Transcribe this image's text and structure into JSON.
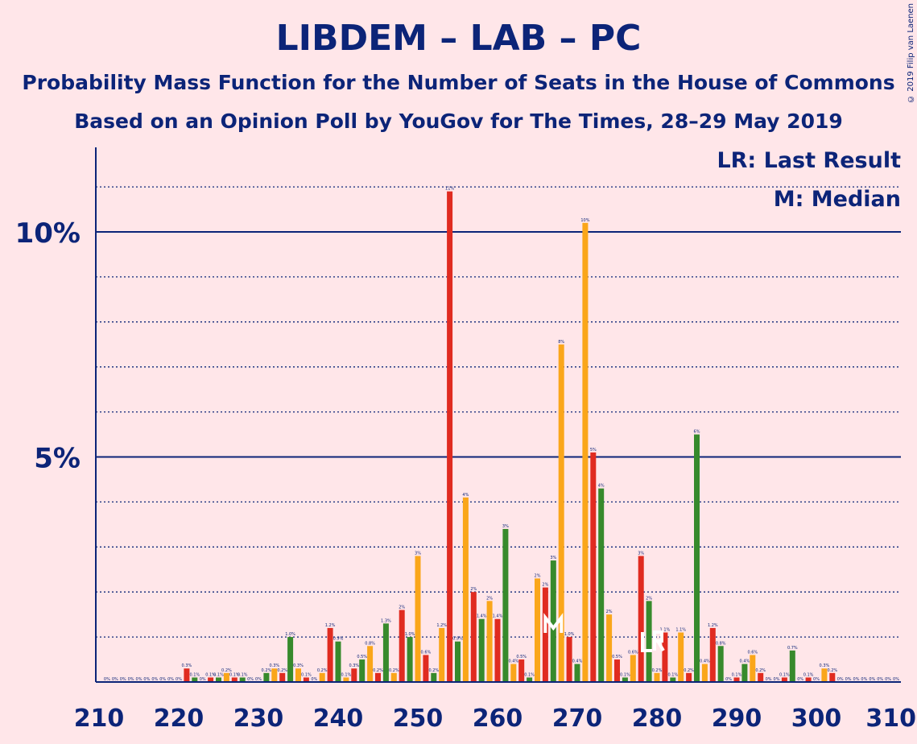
{
  "title": "LIBDEM – LAB – PC",
  "subtitle": "Probability Mass Function for the Number of Seats in the House of Commons",
  "subtitle2": "Based on an Opinion Poll by YouGov for The Times, 28–29 May 2019",
  "copyright": "© 2019 Filip van Laenen",
  "legend": {
    "lr": "LR: Last Result",
    "median": "M: Median"
  },
  "colors": {
    "red": "#E02B20",
    "green": "#378A2C",
    "orange": "#FAA61A",
    "axis": "#0C2478",
    "background": "#FFE6E9",
    "marker": "#FFFFFF"
  },
  "chart_data": {
    "type": "bar",
    "x_range": [
      210,
      310
    ],
    "ylim": [
      0,
      12
    ],
    "y_ticks": [
      {
        "value": 5,
        "label": "5%"
      },
      {
        "value": 10,
        "label": "10%"
      }
    ],
    "x_ticks": [
      210,
      220,
      230,
      240,
      250,
      260,
      270,
      280,
      290,
      300,
      310
    ],
    "median_seat": 267,
    "last_result_seat": 280,
    "bars": [
      {
        "seat": 211,
        "value": 0.0,
        "label": "0%",
        "color": "red"
      },
      {
        "seat": 212,
        "value": 0.0,
        "label": "0%",
        "color": "green"
      },
      {
        "seat": 213,
        "value": 0.0,
        "label": "0%",
        "color": "orange"
      },
      {
        "seat": 214,
        "value": 0.0,
        "label": "0%",
        "color": "red"
      },
      {
        "seat": 215,
        "value": 0.0,
        "label": "0%",
        "color": "green"
      },
      {
        "seat": 216,
        "value": 0.0,
        "label": "0%",
        "color": "orange"
      },
      {
        "seat": 217,
        "value": 0.0,
        "label": "0%",
        "color": "red"
      },
      {
        "seat": 218,
        "value": 0.0,
        "label": "0%",
        "color": "green"
      },
      {
        "seat": 219,
        "value": 0.0,
        "label": "0%",
        "color": "orange"
      },
      {
        "seat": 220,
        "value": 0.0,
        "label": "0%",
        "color": "red"
      },
      {
        "seat": 221,
        "value": 0.3,
        "label": "0.3%",
        "color": "red"
      },
      {
        "seat": 222,
        "value": 0.1,
        "label": "0.1%",
        "color": "green"
      },
      {
        "seat": 223,
        "value": 0.0,
        "label": "0%",
        "color": "orange"
      },
      {
        "seat": 224,
        "value": 0.1,
        "label": "0.1%",
        "color": "red"
      },
      {
        "seat": 225,
        "value": 0.1,
        "label": "0.1%",
        "color": "green"
      },
      {
        "seat": 226,
        "value": 0.2,
        "label": "0.2%",
        "color": "orange"
      },
      {
        "seat": 227,
        "value": 0.1,
        "label": "0.1%",
        "color": "red"
      },
      {
        "seat": 228,
        "value": 0.1,
        "label": "0.1%",
        "color": "green"
      },
      {
        "seat": 229,
        "value": 0.0,
        "label": "0%",
        "color": "orange"
      },
      {
        "seat": 230,
        "value": 0.0,
        "label": "0%",
        "color": "red"
      },
      {
        "seat": 231,
        "value": 0.2,
        "label": "0.2%",
        "color": "green"
      },
      {
        "seat": 232,
        "value": 0.3,
        "label": "0.3%",
        "color": "orange"
      },
      {
        "seat": 233,
        "value": 0.2,
        "label": "0.2%",
        "color": "red"
      },
      {
        "seat": 234,
        "value": 1.0,
        "label": "1.0%",
        "color": "green"
      },
      {
        "seat": 235,
        "value": 0.3,
        "label": "0.3%",
        "color": "orange"
      },
      {
        "seat": 236,
        "value": 0.1,
        "label": "0.1%",
        "color": "red"
      },
      {
        "seat": 237,
        "value": 0.0,
        "label": "0%",
        "color": "green"
      },
      {
        "seat": 238,
        "value": 0.2,
        "label": "0.2%",
        "color": "orange"
      },
      {
        "seat": 239,
        "value": 1.2,
        "label": "1.2%",
        "color": "red"
      },
      {
        "seat": 240,
        "value": 0.9,
        "label": "0.9%",
        "color": "green"
      },
      {
        "seat": 241,
        "value": 0.1,
        "label": "0.1%",
        "color": "orange"
      },
      {
        "seat": 242,
        "value": 0.3,
        "label": "0.3%",
        "color": "red"
      },
      {
        "seat": 243,
        "value": 0.5,
        "label": "0.5%",
        "color": "green"
      },
      {
        "seat": 244,
        "value": 0.8,
        "label": "0.8%",
        "color": "orange"
      },
      {
        "seat": 245,
        "value": 0.2,
        "label": "0.2%",
        "color": "red"
      },
      {
        "seat": 246,
        "value": 1.3,
        "label": "1.3%",
        "color": "green"
      },
      {
        "seat": 247,
        "value": 0.2,
        "label": "0.2%",
        "color": "orange"
      },
      {
        "seat": 248,
        "value": 1.6,
        "label": "2%",
        "color": "red"
      },
      {
        "seat": 249,
        "value": 1.0,
        "label": "1.0%",
        "color": "green"
      },
      {
        "seat": 250,
        "value": 2.8,
        "label": "3%",
        "color": "orange"
      },
      {
        "seat": 251,
        "value": 0.6,
        "label": "0.6%",
        "color": "red"
      },
      {
        "seat": 252,
        "value": 0.2,
        "label": "0.2%",
        "color": "green"
      },
      {
        "seat": 253,
        "value": 1.2,
        "label": "1.2%",
        "color": "orange"
      },
      {
        "seat": 254,
        "value": 10.9,
        "label": "11%",
        "color": "red"
      },
      {
        "seat": 255,
        "value": 0.9,
        "label": "0.9%",
        "color": "green"
      },
      {
        "seat": 256,
        "value": 4.1,
        "label": "4%",
        "color": "orange"
      },
      {
        "seat": 257,
        "value": 2.0,
        "label": "2%",
        "color": "red"
      },
      {
        "seat": 258,
        "value": 1.4,
        "label": "1.4%",
        "color": "green"
      },
      {
        "seat": 259,
        "value": 1.8,
        "label": "2%",
        "color": "orange"
      },
      {
        "seat": 260,
        "value": 1.4,
        "label": "1.4%",
        "color": "red"
      },
      {
        "seat": 261,
        "value": 3.4,
        "label": "3%",
        "color": "green"
      },
      {
        "seat": 262,
        "value": 0.4,
        "label": "0.4%",
        "color": "orange"
      },
      {
        "seat": 263,
        "value": 0.5,
        "label": "0.5%",
        "color": "red"
      },
      {
        "seat": 264,
        "value": 0.1,
        "label": "0.1%",
        "color": "green"
      },
      {
        "seat": 265,
        "value": 2.3,
        "label": "2%",
        "color": "orange"
      },
      {
        "seat": 266,
        "value": 2.1,
        "label": "2%",
        "color": "red"
      },
      {
        "seat": 267,
        "value": 2.7,
        "label": "3%",
        "color": "green"
      },
      {
        "seat": 268,
        "value": 7.5,
        "label": "8%",
        "color": "orange"
      },
      {
        "seat": 269,
        "value": 1.0,
        "label": "1.0%",
        "color": "red"
      },
      {
        "seat": 270,
        "value": 0.4,
        "label": "0.4%",
        "color": "green"
      },
      {
        "seat": 271,
        "value": 10.2,
        "label": "10%",
        "color": "orange"
      },
      {
        "seat": 272,
        "value": 5.1,
        "label": "5%",
        "color": "red"
      },
      {
        "seat": 273,
        "value": 4.3,
        "label": "4%",
        "color": "green"
      },
      {
        "seat": 274,
        "value": 1.5,
        "label": "2%",
        "color": "orange"
      },
      {
        "seat": 275,
        "value": 0.5,
        "label": "0.5%",
        "color": "red"
      },
      {
        "seat": 276,
        "value": 0.1,
        "label": "0.1%",
        "color": "green"
      },
      {
        "seat": 277,
        "value": 0.6,
        "label": "0.6%",
        "color": "orange"
      },
      {
        "seat": 278,
        "value": 2.8,
        "label": "3%",
        "color": "red"
      },
      {
        "seat": 279,
        "value": 1.8,
        "label": "2%",
        "color": "green"
      },
      {
        "seat": 280,
        "value": 0.2,
        "label": "0.2%",
        "color": "orange"
      },
      {
        "seat": 281,
        "value": 1.1,
        "label": "1.1%",
        "color": "red"
      },
      {
        "seat": 282,
        "value": 0.1,
        "label": "0.1%",
        "color": "green"
      },
      {
        "seat": 283,
        "value": 1.1,
        "label": "1.1%",
        "color": "orange"
      },
      {
        "seat": 284,
        "value": 0.2,
        "label": "0.2%",
        "color": "red"
      },
      {
        "seat": 285,
        "value": 5.5,
        "label": "6%",
        "color": "green"
      },
      {
        "seat": 286,
        "value": 0.4,
        "label": "0.4%",
        "color": "orange"
      },
      {
        "seat": 287,
        "value": 1.2,
        "label": "1.2%",
        "color": "red"
      },
      {
        "seat": 288,
        "value": 0.8,
        "label": "0.8%",
        "color": "green"
      },
      {
        "seat": 289,
        "value": 0.0,
        "label": "0%",
        "color": "orange"
      },
      {
        "seat": 290,
        "value": 0.1,
        "label": "0.1%",
        "color": "red"
      },
      {
        "seat": 291,
        "value": 0.4,
        "label": "0.4%",
        "color": "green"
      },
      {
        "seat": 292,
        "value": 0.6,
        "label": "0.6%",
        "color": "orange"
      },
      {
        "seat": 293,
        "value": 0.2,
        "label": "0.2%",
        "color": "red"
      },
      {
        "seat": 294,
        "value": 0.0,
        "label": "0%",
        "color": "green"
      },
      {
        "seat": 295,
        "value": 0.0,
        "label": "0%",
        "color": "orange"
      },
      {
        "seat": 296,
        "value": 0.1,
        "label": "0.1%",
        "color": "red"
      },
      {
        "seat": 297,
        "value": 0.7,
        "label": "0.7%",
        "color": "green"
      },
      {
        "seat": 298,
        "value": 0.0,
        "label": "0%",
        "color": "orange"
      },
      {
        "seat": 299,
        "value": 0.1,
        "label": "0.1%",
        "color": "red"
      },
      {
        "seat": 300,
        "value": 0.0,
        "label": "0%",
        "color": "green"
      },
      {
        "seat": 301,
        "value": 0.3,
        "label": "0.3%",
        "color": "orange"
      },
      {
        "seat": 302,
        "value": 0.2,
        "label": "0.2%",
        "color": "red"
      },
      {
        "seat": 303,
        "value": 0.0,
        "label": "0%",
        "color": "green"
      },
      {
        "seat": 304,
        "value": 0.0,
        "label": "0%",
        "color": "orange"
      },
      {
        "seat": 305,
        "value": 0.0,
        "label": "0%",
        "color": "red"
      },
      {
        "seat": 306,
        "value": 0.0,
        "label": "0%",
        "color": "green"
      },
      {
        "seat": 307,
        "value": 0.0,
        "label": "0%",
        "color": "orange"
      },
      {
        "seat": 308,
        "value": 0.0,
        "label": "0%",
        "color": "red"
      },
      {
        "seat": 309,
        "value": 0.0,
        "label": "0%",
        "color": "green"
      },
      {
        "seat": 310,
        "value": 0.0,
        "label": "0%",
        "color": "orange"
      }
    ]
  }
}
